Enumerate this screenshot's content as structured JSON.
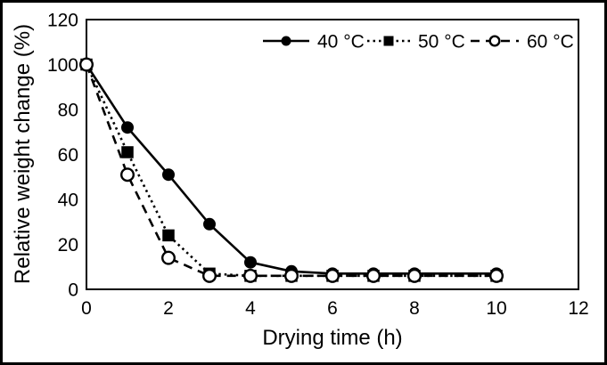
{
  "figure": {
    "background": "#ffffff",
    "border_color": "#000000"
  },
  "chart_data": {
    "type": "line",
    "title": "",
    "xlabel": "Drying time (h)",
    "ylabel": "Relative weight change (%)",
    "xlim": [
      0,
      12
    ],
    "ylim": [
      0,
      120
    ],
    "x_ticks": [
      0,
      2,
      4,
      6,
      8,
      10,
      12
    ],
    "y_ticks": [
      0,
      20,
      40,
      60,
      80,
      100,
      120
    ],
    "grid": false,
    "legend_position": "top-inside",
    "x": [
      0,
      1,
      2,
      3,
      4,
      5,
      6,
      7,
      8,
      10
    ],
    "series": [
      {
        "name": "40 °C",
        "marker": "filled-circle",
        "line_style": "solid",
        "color": "#000000",
        "values": [
          100,
          72,
          51,
          29,
          12,
          8,
          7,
          7,
          7,
          7
        ]
      },
      {
        "name": "50 °C",
        "marker": "filled-square",
        "line_style": "dotted",
        "color": "#000000",
        "values": [
          100,
          61,
          24,
          7,
          6,
          6,
          6,
          6,
          6,
          6
        ]
      },
      {
        "name": "60 °C",
        "marker": "open-circle",
        "line_style": "dashed",
        "color": "#000000",
        "values": [
          100,
          51,
          14,
          6,
          6,
          6,
          6,
          6,
          6,
          6
        ]
      }
    ]
  }
}
